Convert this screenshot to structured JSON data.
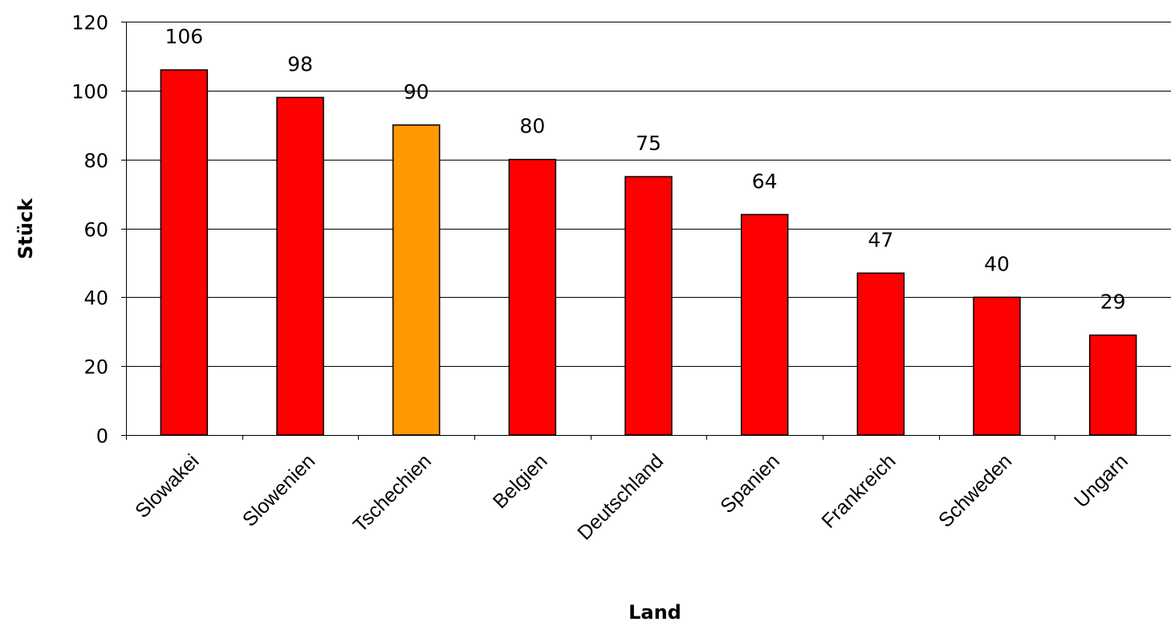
{
  "chart_data": {
    "type": "bar",
    "title": "",
    "xlabel": "Land",
    "ylabel": "Stück",
    "ylim": [
      0,
      120
    ],
    "yticks": [
      0,
      20,
      40,
      60,
      80,
      100,
      120
    ],
    "grid": "horizontal",
    "legend": "none",
    "categories": [
      "Slowakei",
      "Slowenien",
      "Tschechien",
      "Belgien",
      "Deutschland",
      "Spanien",
      "Frankreich",
      "Schweden",
      "Ungarn"
    ],
    "values": [
      106,
      98,
      90,
      80,
      75,
      64,
      47,
      40,
      29
    ],
    "data_labels": [
      "106",
      "98",
      "90",
      "80",
      "75",
      "64",
      "47",
      "40",
      "29"
    ],
    "colors": {
      "default_bar": "#ff0000",
      "highlight_bar": "#ff9900",
      "highlight_category": "Tschechien"
    }
  }
}
